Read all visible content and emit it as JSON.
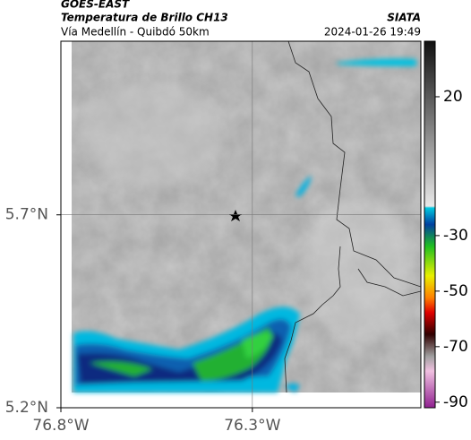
{
  "header": {
    "satellite": "GOES-EAST",
    "product": "Temperatura de Brillo CH13",
    "route": "Vía Medellín - Quibdó 50km",
    "source": "SIATA",
    "timestamp": "2024-01-26 19:49"
  },
  "map": {
    "xlim": [
      -76.8,
      -75.86
    ],
    "ylim": [
      5.2,
      6.15
    ],
    "xticks": [
      {
        "value": -76.8,
        "label": "76.8°W"
      },
      {
        "value": -76.3,
        "label": "76.3°W"
      }
    ],
    "yticks": [
      {
        "value": 5.2,
        "label": "5.2°N"
      },
      {
        "value": 5.7,
        "label": "5.7°N"
      }
    ],
    "grid": true
  },
  "colorbar": {
    "clim": [
      -92,
      40
    ],
    "ticks": [
      20,
      -30,
      -50,
      -70,
      -90
    ]
  }
}
